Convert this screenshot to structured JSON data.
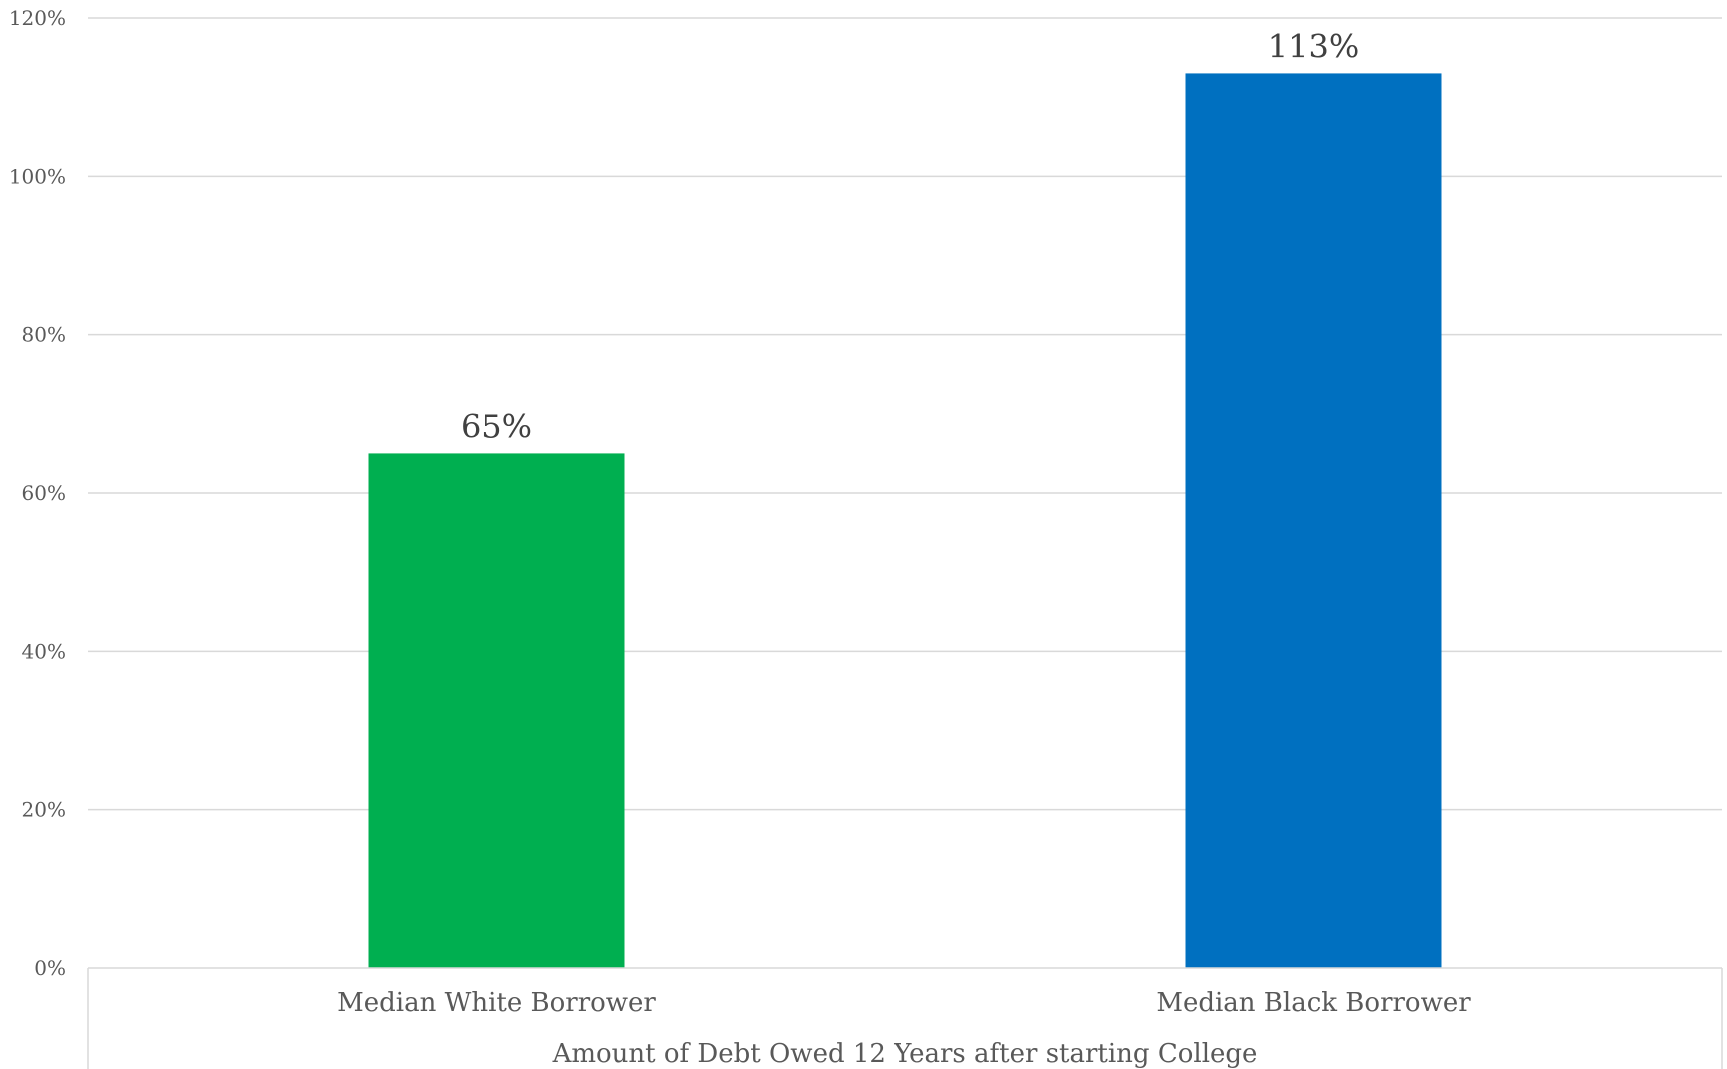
{
  "chart_data": {
    "type": "bar",
    "categories": [
      "Median White Borrower",
      "Median Black Borrower"
    ],
    "values": [
      65,
      113
    ],
    "data_labels": [
      "65%",
      "113%"
    ],
    "colors": [
      "#00AF50",
      "#0070C0"
    ],
    "group_label": "Amount of Debt Owed 12 Years after starting College",
    "ylim": [
      0,
      120
    ],
    "yticks": [
      0,
      20,
      40,
      60,
      80,
      100,
      120
    ],
    "ytick_labels": [
      "0%",
      "20%",
      "40%",
      "60%",
      "80%",
      "100%",
      "120%"
    ],
    "grid": true,
    "legend": "none",
    "gridline_color": "#D9D9D9",
    "axis_color": "#D9D9D9"
  }
}
